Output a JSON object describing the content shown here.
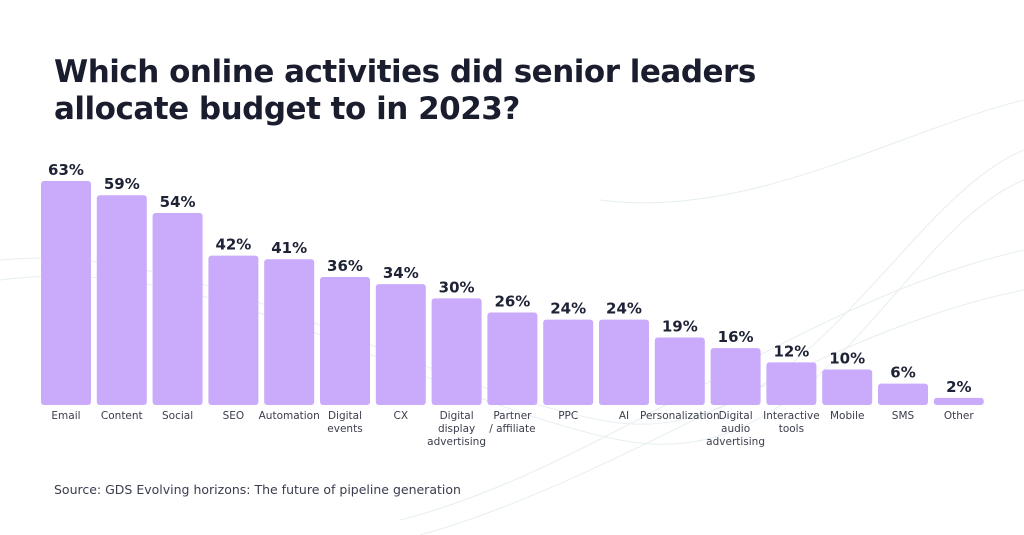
{
  "chart_data": {
    "type": "bar",
    "title": "Which online activities did senior leaders allocate budget to in 2023?",
    "categories": [
      "Email",
      "Content",
      "Social",
      "SEO",
      "Automation",
      "Digital events",
      "CX",
      "Digital display advertising",
      "Partner / affiliate",
      "PPC",
      "AI",
      "Personalization",
      "Digital audio advertising",
      "Interactive tools",
      "Mobile",
      "SMS",
      "Other"
    ],
    "category_lines": [
      [
        "Email"
      ],
      [
        "Content"
      ],
      [
        "Social"
      ],
      [
        "SEO"
      ],
      [
        "Automation"
      ],
      [
        "Digital",
        "events"
      ],
      [
        "CX"
      ],
      [
        "Digital",
        "display",
        "advertising"
      ],
      [
        "Partner",
        "/ affiliate"
      ],
      [
        "PPC"
      ],
      [
        "AI"
      ],
      [
        "Personalization"
      ],
      [
        "Digital",
        "audio",
        "advertising"
      ],
      [
        "Interactive",
        "tools"
      ],
      [
        "Mobile"
      ],
      [
        "SMS"
      ],
      [
        "Other"
      ]
    ],
    "values": [
      63,
      59,
      54,
      42,
      41,
      36,
      34,
      30,
      26,
      24,
      24,
      19,
      16,
      12,
      10,
      6,
      2
    ],
    "value_suffix": "%",
    "ylim": [
      0,
      63
    ],
    "grid": false,
    "bar_color": "#c9aafb",
    "label_color": "#1e2235"
  },
  "source": "Source: GDS Evolving horizons: The future of pipeline generation"
}
